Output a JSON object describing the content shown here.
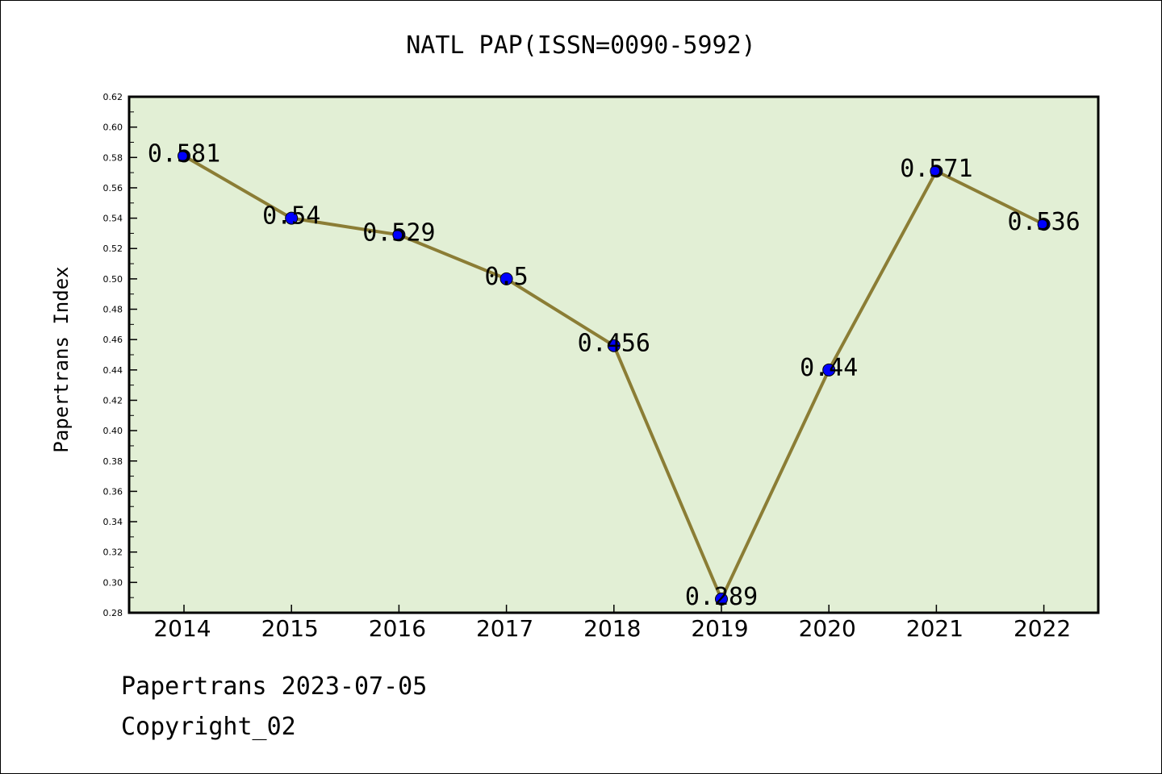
{
  "chart_data": {
    "type": "line",
    "title": "NATL PAP(ISSN=0090-5992)",
    "xlabel": "",
    "ylabel": "Papertrans Index",
    "x": [
      "2014",
      "2015",
      "2016",
      "2017",
      "2018",
      "2019",
      "2020",
      "2021",
      "2022"
    ],
    "series": [
      {
        "values": [
          0.581,
          0.54,
          0.529,
          0.5,
          0.456,
          0.289,
          0.44,
          0.571,
          0.536
        ],
        "labels": [
          "0.581",
          "0.54",
          "0.529",
          "0.5",
          "0.456",
          "0.289",
          "0.44",
          "0.571",
          "0.536"
        ],
        "line_color": "#8b7d35",
        "marker_color": "#0000ff"
      }
    ],
    "ylim": [
      0.28,
      0.62
    ],
    "yticks": [
      "0.28",
      "0.30",
      "0.32",
      "0.34",
      "0.36",
      "0.38",
      "0.40",
      "0.42",
      "0.44",
      "0.46",
      "0.48",
      "0.50",
      "0.52",
      "0.54",
      "0.56",
      "0.58",
      "0.60",
      "0.62"
    ],
    "grid": false,
    "legend": "none",
    "plot_background": "#e2efd5"
  },
  "footer": {
    "line1": "Papertrans 2023-07-05",
    "line2": "Copyright_02"
  }
}
